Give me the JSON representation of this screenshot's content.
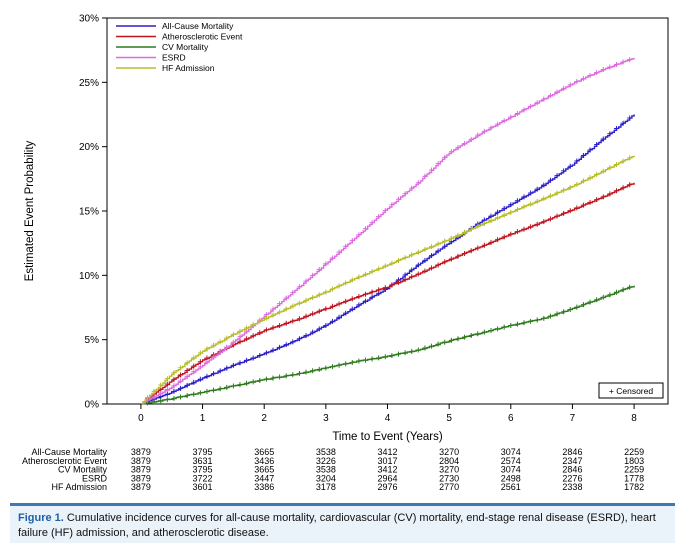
{
  "chart_data": {
    "type": "line",
    "xlabel": "Time to Event (Years)",
    "ylabel": "Estimated Event Probability",
    "xlim": [
      -0.55,
      8.55
    ],
    "ylim": [
      0,
      30
    ],
    "x_ticks": [
      0,
      1,
      2,
      3,
      4,
      5,
      6,
      7,
      8
    ],
    "y_ticks": [
      0,
      5,
      10,
      15,
      20,
      25,
      30
    ],
    "y_tick_labels": [
      "0%",
      "5%",
      "10%",
      "15%",
      "20%",
      "25%",
      "30%"
    ],
    "legend_position": "top-left",
    "censored_label": "+ Censored",
    "series": [
      {
        "name": "All-Cause Mortality",
        "color": "#2b1fc8",
        "x": [
          0,
          0.5,
          1,
          1.5,
          2,
          2.5,
          3,
          3.5,
          4,
          4.5,
          5,
          5.5,
          6,
          6.5,
          7,
          7.5,
          8
        ],
        "y": [
          0,
          0.9,
          2.0,
          3.0,
          3.9,
          4.9,
          6.1,
          7.6,
          9.0,
          10.8,
          12.5,
          14.1,
          15.5,
          16.9,
          18.6,
          20.6,
          22.5
        ]
      },
      {
        "name": "Atherosclerotic Event",
        "color": "#c0151f",
        "x": [
          0,
          0.5,
          1,
          1.5,
          2,
          2.5,
          3,
          3.5,
          4,
          4.5,
          5,
          5.5,
          6,
          6.5,
          7,
          7.5,
          8
        ],
        "y": [
          0,
          1.8,
          3.4,
          4.6,
          5.7,
          6.5,
          7.4,
          8.3,
          9.1,
          10.1,
          11.2,
          12.2,
          13.2,
          14.1,
          15.1,
          16.1,
          17.2
        ]
      },
      {
        "name": "CV Mortality",
        "color": "#2e7a1e",
        "x": [
          0,
          0.5,
          1,
          1.5,
          2,
          2.5,
          3,
          3.5,
          4,
          4.5,
          5,
          5.5,
          6,
          6.5,
          7,
          7.5,
          8
        ],
        "y": [
          0,
          0.4,
          0.9,
          1.4,
          1.9,
          2.3,
          2.8,
          3.3,
          3.7,
          4.2,
          4.9,
          5.5,
          6.1,
          6.6,
          7.4,
          8.3,
          9.2
        ]
      },
      {
        "name": "ESRD",
        "color": "#dc6be0",
        "x": [
          0,
          0.5,
          1,
          1.5,
          2,
          2.5,
          3,
          3.5,
          4,
          4.5,
          5,
          5.5,
          6,
          6.5,
          7,
          7.5,
          8
        ],
        "y": [
          0,
          1.3,
          3.0,
          4.8,
          6.8,
          8.8,
          10.9,
          13.0,
          15.2,
          17.2,
          19.5,
          21.0,
          22.3,
          23.6,
          24.9,
          26.0,
          26.9
        ]
      },
      {
        "name": "HF Admission",
        "color": "#b7bd2a",
        "x": [
          0,
          0.5,
          1,
          1.5,
          2,
          2.5,
          3,
          3.5,
          4,
          4.5,
          5,
          5.5,
          6,
          6.5,
          7,
          7.5,
          8
        ],
        "y": [
          0,
          2.3,
          4.1,
          5.4,
          6.6,
          7.7,
          8.7,
          9.8,
          10.8,
          11.8,
          12.8,
          13.9,
          14.9,
          15.9,
          16.9,
          18.1,
          19.3
        ]
      }
    ],
    "risk_table": {
      "times": [
        0,
        1,
        2,
        3,
        4,
        5,
        6,
        7,
        8
      ],
      "rows": [
        {
          "label": "All-Cause Mortality",
          "values": [
            "3879",
            "3795",
            "3665",
            "3538",
            "3412",
            "3270",
            "3074",
            "2846",
            "2259"
          ]
        },
        {
          "label": "Atherosclerotic Event",
          "values": [
            "3879",
            "3631",
            "3436",
            "3226",
            "3017",
            "2804",
            "2574",
            "2347",
            "1803"
          ]
        },
        {
          "label": "CV Mortality",
          "values": [
            "3879",
            "3795",
            "3665",
            "3538",
            "3412",
            "3270",
            "3074",
            "2846",
            "2259"
          ]
        },
        {
          "label": "ESRD",
          "values": [
            "3879",
            "3722",
            "3447",
            "3204",
            "2964",
            "2730",
            "2498",
            "2276",
            "1778"
          ]
        },
        {
          "label": "HF Admission",
          "values": [
            "3879",
            "3601",
            "3386",
            "3178",
            "2976",
            "2770",
            "2561",
            "2338",
            "1782"
          ]
        }
      ]
    }
  },
  "caption": {
    "label": "Figure 1.",
    "text": " Cumulative incidence curves for all-cause mortality, cardiovascular (CV) mortality, end-stage renal disease (ESRD), heart failure (HF) admission, and atherosclerotic disease."
  }
}
